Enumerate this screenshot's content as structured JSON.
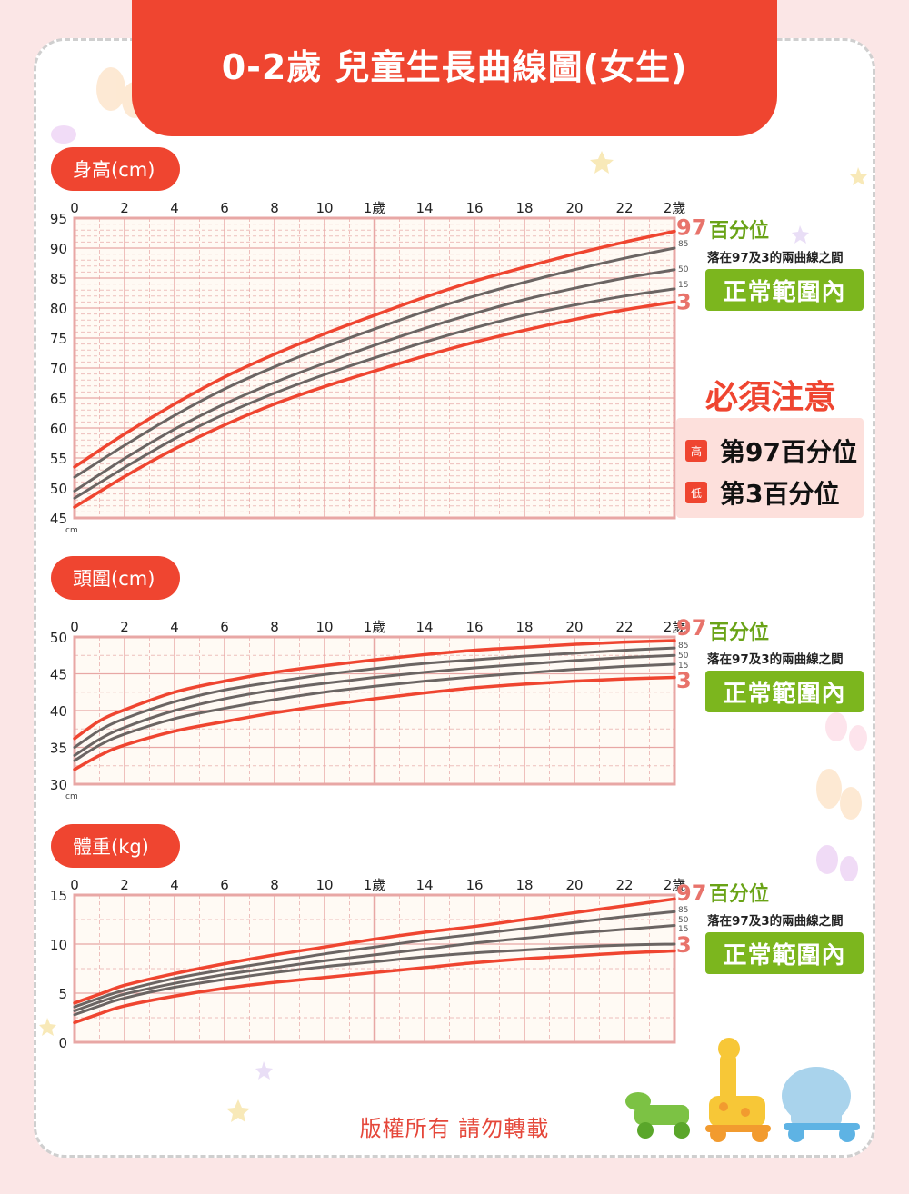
{
  "title": "0-2歲 兒童生長曲線圖(女生)",
  "footer": "版權所有  請勿轉載",
  "legend": {
    "percentile_title": "百分位",
    "note": "落在97及3的兩曲線之間",
    "normal": "正常範圍內",
    "label_97": "97",
    "label_85": "85",
    "label_50": "50",
    "label_15": "15",
    "label_3": "3"
  },
  "warning": {
    "title": "必須注意",
    "high_tag": "高",
    "high_text": "第97百分位",
    "low_tag": "低",
    "low_text": "第3百分位"
  },
  "colors": {
    "accent": "#ef4530",
    "grid": "#e8a7a5",
    "median": "#6b6563",
    "green": "#7cb61e",
    "plot_bg": "#fffaf4"
  },
  "chart_data": [
    {
      "type": "line",
      "title": "身高(cm)",
      "unit": "cm",
      "x_ticks": [
        "0",
        "2",
        "4",
        "6",
        "8",
        "10",
        "1歲",
        "14",
        "16",
        "18",
        "20",
        "22",
        "2歲"
      ],
      "xlim": [
        0,
        24
      ],
      "ylim": [
        45,
        95
      ],
      "y_ticks": [
        45,
        50,
        55,
        60,
        65,
        70,
        75,
        80,
        85,
        90,
        95
      ],
      "x": [
        0,
        2,
        4,
        6,
        8,
        10,
        12,
        14,
        16,
        18,
        20,
        22,
        24
      ],
      "series": [
        {
          "name": "97",
          "values": [
            53.5,
            59.0,
            64.0,
            68.5,
            72.3,
            75.7,
            78.8,
            81.8,
            84.5,
            86.8,
            89.0,
            91.0,
            92.8
          ]
        },
        {
          "name": "85",
          "values": [
            51.8,
            57.1,
            62.1,
            66.5,
            70.2,
            73.5,
            76.5,
            79.4,
            82.0,
            84.3,
            86.4,
            88.3,
            90.0
          ]
        },
        {
          "name": "50",
          "values": [
            49.5,
            54.9,
            59.8,
            64.0,
            67.6,
            70.8,
            73.8,
            76.6,
            79.1,
            81.4,
            83.3,
            85.0,
            86.4
          ]
        },
        {
          "name": "15",
          "values": [
            48.3,
            53.4,
            58.2,
            62.3,
            65.8,
            68.9,
            71.7,
            74.3,
            76.7,
            78.8,
            80.5,
            82.0,
            83.2
          ]
        },
        {
          "name": "3",
          "values": [
            46.8,
            51.9,
            56.5,
            60.5,
            64.0,
            66.9,
            69.5,
            72.0,
            74.3,
            76.3,
            78.1,
            79.7,
            81.0
          ]
        }
      ]
    },
    {
      "type": "line",
      "title": "頭圍(cm)",
      "unit": "cm",
      "x_ticks": [
        "0",
        "2",
        "4",
        "6",
        "8",
        "10",
        "1歲",
        "14",
        "16",
        "18",
        "20",
        "22",
        "2歲"
      ],
      "xlim": [
        0,
        24
      ],
      "ylim": [
        30,
        50
      ],
      "y_ticks": [
        30,
        35,
        40,
        45,
        50
      ],
      "x": [
        0,
        1,
        2,
        4,
        6,
        8,
        10,
        12,
        14,
        16,
        18,
        20,
        22,
        24
      ],
      "series": [
        {
          "name": "97",
          "values": [
            36.2,
            38.6,
            40.1,
            42.5,
            44.0,
            45.2,
            46.1,
            46.9,
            47.6,
            48.2,
            48.6,
            49.0,
            49.3,
            49.5
          ]
        },
        {
          "name": "85",
          "values": [
            35.0,
            37.3,
            38.9,
            41.2,
            42.8,
            43.9,
            44.9,
            45.7,
            46.4,
            46.9,
            47.4,
            47.8,
            48.2,
            48.5
          ]
        },
        {
          "name": "50",
          "values": [
            33.9,
            36.1,
            37.7,
            40.0,
            41.6,
            42.8,
            43.7,
            44.5,
            45.2,
            45.8,
            46.3,
            46.8,
            47.2,
            47.5
          ]
        },
        {
          "name": "15",
          "values": [
            33.2,
            35.3,
            36.8,
            38.9,
            40.3,
            41.5,
            42.5,
            43.3,
            44.0,
            44.6,
            45.1,
            45.6,
            46.0,
            46.3
          ]
        },
        {
          "name": "3",
          "values": [
            32.0,
            33.9,
            35.3,
            37.2,
            38.5,
            39.7,
            40.7,
            41.6,
            42.4,
            43.1,
            43.6,
            44.0,
            44.3,
            44.5
          ]
        }
      ]
    },
    {
      "type": "line",
      "title": "體重(kg)",
      "unit": "kg",
      "x_ticks": [
        "0",
        "2",
        "4",
        "6",
        "8",
        "10",
        "1歲",
        "14",
        "16",
        "18",
        "20",
        "22",
        "2歲"
      ],
      "xlim": [
        0,
        24
      ],
      "ylim": [
        0,
        15
      ],
      "y_ticks": [
        0,
        5,
        10,
        15
      ],
      "x": [
        0,
        1,
        2,
        4,
        6,
        8,
        10,
        12,
        14,
        16,
        18,
        20,
        22,
        24
      ],
      "series": [
        {
          "name": "97",
          "values": [
            4.0,
            4.9,
            5.8,
            7.0,
            8.0,
            8.9,
            9.7,
            10.5,
            11.2,
            11.8,
            12.5,
            13.2,
            13.9,
            14.6
          ]
        },
        {
          "name": "85",
          "values": [
            3.6,
            4.5,
            5.3,
            6.5,
            7.4,
            8.2,
            9.0,
            9.7,
            10.4,
            11.0,
            11.6,
            12.2,
            12.8,
            13.3
          ]
        },
        {
          "name": "50",
          "values": [
            3.2,
            4.1,
            4.9,
            6.0,
            6.9,
            7.6,
            8.3,
            8.9,
            9.5,
            10.1,
            10.6,
            11.1,
            11.5,
            11.9
          ]
        },
        {
          "name": "15",
          "values": [
            2.8,
            3.7,
            4.5,
            5.6,
            6.4,
            7.1,
            7.7,
            8.2,
            8.7,
            9.1,
            9.4,
            9.7,
            9.9,
            10.0
          ]
        },
        {
          "name": "3",
          "values": [
            2.0,
            2.9,
            3.7,
            4.7,
            5.5,
            6.1,
            6.6,
            7.1,
            7.6,
            8.1,
            8.5,
            8.8,
            9.1,
            9.3
          ]
        }
      ]
    }
  ]
}
